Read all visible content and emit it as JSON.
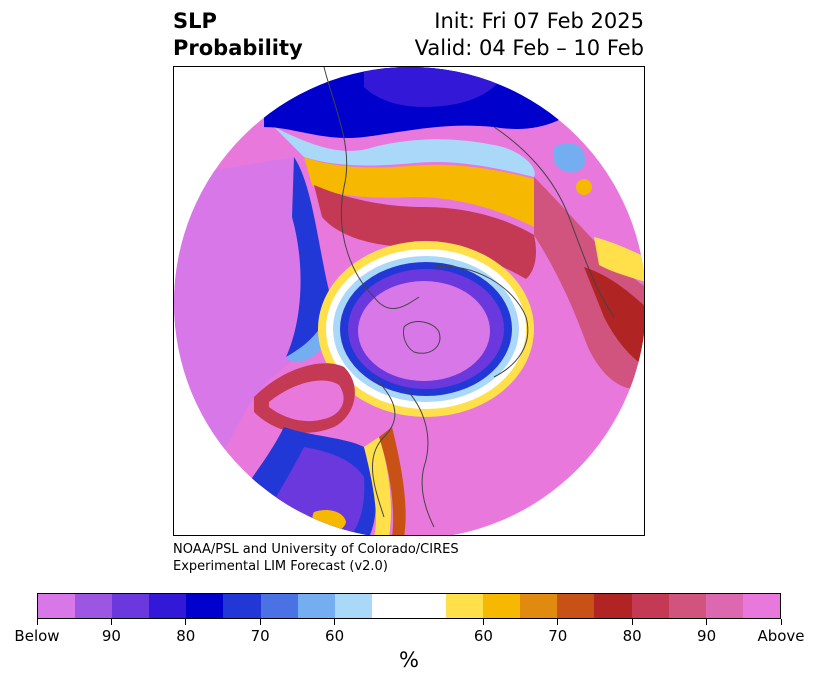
{
  "title": {
    "left_line1": "SLP",
    "left_line2": "Probability",
    "right_line1": "Init: Fri 07 Feb 2025",
    "right_line2": "Valid: 04 Feb – 10 Feb"
  },
  "credit": {
    "line1": "NOAA/PSL and University of Colorado/CIRES",
    "line2": "Experimental LIM Forecast (v2.0)"
  },
  "colorbar": {
    "units": "%",
    "colors": [
      "#d878e8",
      "#9c56e2",
      "#6a38dc",
      "#3318d8",
      "#0000cc",
      "#2238d6",
      "#4a72e4",
      "#74aef0",
      "#aad8f8",
      "#ffffff",
      "#ffe04a",
      "#f6b800",
      "#e08a10",
      "#c85216",
      "#b02424",
      "#c43a54",
      "#d0547e",
      "#dc68b0",
      "#e878dc"
    ],
    "labels": [
      "Below",
      "90",
      "80",
      "70",
      "60",
      "60",
      "70",
      "80",
      "90",
      "Above"
    ]
  },
  "map": {
    "projection": "north-polar-stereographic",
    "below_color": "#d878e8",
    "above_color": "#e878dc"
  }
}
